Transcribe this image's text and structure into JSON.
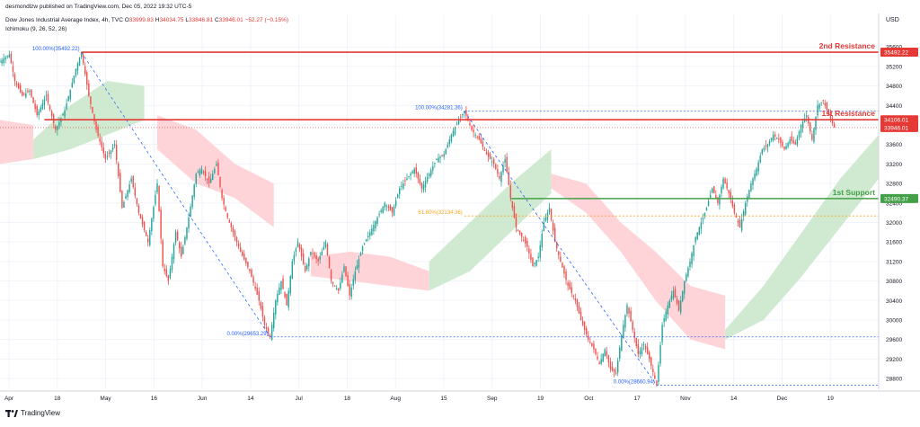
{
  "header": {
    "publisher": "desmondlzw published on TradingView.com, Dec 05, 2022 19:32 UTC-5",
    "symbol": "Dow Jones Industrial Average Index, 4h, TVC",
    "o_label": "O",
    "o_value": "33999.83",
    "h_label": "H",
    "h_value": "34034.75",
    "l_label": "L",
    "l_value": "33846.81",
    "c_label": "C",
    "c_value": "33946.01",
    "change": "−52.27 (−0.15%)",
    "indicator": "Ichimoku (9, 26, 52, 26)"
  },
  "footer": {
    "brand": "TradingView"
  },
  "colors": {
    "up": "#26a69a",
    "down": "#ef5350",
    "resistance": "#e53935",
    "support": "#43a047",
    "fib": "#2962ff",
    "fib61": "#f9a825",
    "cloud_bull": "#c8e6c9",
    "cloud_bear": "#ffcdd2",
    "grid": "#f0f3fa",
    "axis_text": "#131722"
  },
  "chart_data": {
    "type": "candlestick",
    "currency": "USD",
    "x_ticks": [
      "Apr",
      "18",
      "May",
      "16",
      "Jun",
      "14",
      "Jul",
      "18",
      "Aug",
      "15",
      "Sep",
      "19",
      "Oct",
      "17",
      "Nov",
      "14",
      "Dec",
      "19"
    ],
    "y_ticks": [
      28800,
      29200,
      29600,
      30000,
      30400,
      30800,
      31200,
      31600,
      32000,
      32400,
      32800,
      33200,
      33600,
      34000,
      34400,
      34800,
      35200,
      35600
    ],
    "ylim": [
      28580,
      35880
    ],
    "price_path": [
      [
        0,
        35300
      ],
      [
        5,
        35450
      ],
      [
        8,
        34900
      ],
      [
        12,
        34600
      ],
      [
        16,
        34700
      ],
      [
        20,
        34200
      ],
      [
        25,
        34600
      ],
      [
        30,
        33900
      ],
      [
        35,
        34300
      ],
      [
        41,
        35150
      ],
      [
        44,
        35492
      ],
      [
        48,
        34600
      ],
      [
        52,
        33900
      ],
      [
        57,
        33300
      ],
      [
        62,
        33600
      ],
      [
        66,
        32300
      ],
      [
        71,
        32900
      ],
      [
        75,
        32200
      ],
      [
        80,
        31600
      ],
      [
        85,
        32800
      ],
      [
        88,
        31100
      ],
      [
        91,
        30800
      ],
      [
        95,
        31800
      ],
      [
        98,
        31300
      ],
      [
        102,
        32100
      ],
      [
        106,
        33000
      ],
      [
        109,
        33100
      ],
      [
        113,
        32800
      ],
      [
        117,
        33200
      ],
      [
        120,
        32500
      ],
      [
        123,
        32100
      ],
      [
        126,
        31800
      ],
      [
        130,
        31400
      ],
      [
        135,
        31000
      ],
      [
        140,
        30400
      ],
      [
        143,
        29900
      ],
      [
        146,
        29653
      ],
      [
        149,
        30400
      ],
      [
        152,
        30800
      ],
      [
        155,
        30300
      ],
      [
        158,
        31200
      ],
      [
        161,
        31600
      ],
      [
        165,
        31000
      ],
      [
        168,
        31400
      ],
      [
        172,
        31200
      ],
      [
        176,
        31600
      ],
      [
        179,
        30800
      ],
      [
        183,
        30600
      ],
      [
        186,
        31100
      ],
      [
        189,
        30500
      ],
      [
        192,
        31000
      ],
      [
        196,
        31500
      ],
      [
        200,
        31800
      ],
      [
        204,
        32100
      ],
      [
        208,
        32400
      ],
      [
        212,
        32200
      ],
      [
        216,
        32700
      ],
      [
        220,
        32900
      ],
      [
        224,
        33100
      ],
      [
        228,
        32700
      ],
      [
        232,
        33000
      ],
      [
        236,
        33300
      ],
      [
        240,
        33400
      ],
      [
        244,
        33800
      ],
      [
        248,
        34100
      ],
      [
        251,
        34281
      ],
      [
        255,
        33900
      ],
      [
        259,
        33700
      ],
      [
        263,
        33400
      ],
      [
        267,
        33200
      ],
      [
        270,
        32900
      ],
      [
        273,
        33300
      ],
      [
        276,
        32500
      ],
      [
        279,
        31900
      ],
      [
        282,
        31700
      ],
      [
        285,
        31500
      ],
      [
        288,
        31100
      ],
      [
        291,
        31300
      ],
      [
        294,
        32000
      ],
      [
        297,
        32300
      ],
      [
        300,
        31600
      ],
      [
        303,
        31200
      ],
      [
        307,
        30700
      ],
      [
        311,
        30400
      ],
      [
        314,
        30000
      ],
      [
        318,
        29600
      ],
      [
        321,
        29400
      ],
      [
        324,
        29100
      ],
      [
        327,
        29400
      ],
      [
        330,
        29000
      ],
      [
        333,
        28900
      ],
      [
        336,
        29700
      ],
      [
        339,
        30300
      ],
      [
        342,
        29800
      ],
      [
        345,
        29300
      ],
      [
        348,
        29500
      ],
      [
        351,
        29200
      ],
      [
        355,
        28661
      ],
      [
        358,
        29900
      ],
      [
        361,
        30300
      ],
      [
        364,
        30600
      ],
      [
        367,
        30200
      ],
      [
        370,
        30800
      ],
      [
        373,
        31200
      ],
      [
        376,
        31700
      ],
      [
        379,
        32000
      ],
      [
        382,
        32300
      ],
      [
        385,
        32700
      ],
      [
        388,
        32400
      ],
      [
        391,
        32900
      ],
      [
        394,
        32600
      ],
      [
        397,
        32200
      ],
      [
        400,
        31900
      ],
      [
        403,
        32400
      ],
      [
        406,
        32800
      ],
      [
        409,
        33100
      ],
      [
        412,
        33500
      ],
      [
        415,
        33600
      ],
      [
        418,
        33800
      ],
      [
        421,
        33700
      ],
      [
        424,
        33500
      ],
      [
        427,
        33700
      ],
      [
        430,
        33600
      ],
      [
        433,
        34000
      ],
      [
        436,
        34200
      ],
      [
        439,
        33700
      ],
      [
        442,
        34400
      ],
      [
        445,
        34500
      ],
      [
        448,
        34200
      ],
      [
        451,
        33946
      ]
    ],
    "ichimoku_cloud": [
      {
        "color": "bear",
        "x_from": 0,
        "x_to": 18,
        "top": [
          34100,
          34000
        ],
        "bottom": [
          33200,
          33300
        ]
      },
      {
        "color": "bull",
        "x_from": 18,
        "x_to": 78,
        "top": [
          33700,
          34400,
          34900,
          34800
        ],
        "bottom": [
          33300,
          33500,
          33800,
          34100
        ]
      },
      {
        "color": "bear",
        "x_from": 85,
        "x_to": 148,
        "top": [
          34200,
          33900,
          33200,
          32800
        ],
        "bottom": [
          33500,
          32800,
          32500,
          31900
        ]
      },
      {
        "color": "bear",
        "x_from": 168,
        "x_to": 232,
        "top": [
          31300,
          31400,
          31300,
          31000
        ],
        "bottom": [
          30900,
          30800,
          30700,
          30600
        ]
      },
      {
        "color": "bull",
        "x_from": 232,
        "x_to": 298,
        "top": [
          31200,
          32000,
          32800,
          33500
        ],
        "bottom": [
          30600,
          31000,
          31800,
          32600
        ]
      },
      {
        "color": "bear",
        "x_from": 298,
        "x_to": 392,
        "top": [
          33000,
          32800,
          32000,
          31400,
          30700,
          30500
        ],
        "bottom": [
          32700,
          32200,
          31400,
          30400,
          29600,
          29400
        ]
      },
      {
        "color": "bull",
        "x_from": 392,
        "x_to": 475,
        "top": [
          29800,
          30700,
          31800,
          32900,
          33800
        ],
        "bottom": [
          29600,
          30000,
          30900,
          31900,
          32900
        ]
      }
    ],
    "levels": [
      {
        "name": "2nd Resistance",
        "price": 35492.22,
        "label": "35492.22",
        "kind": "resistance"
      },
      {
        "name": "1st Resistance",
        "price": 34106.01,
        "label": "34106.01",
        "kind": "resistance"
      },
      {
        "name": "1st Support",
        "price": 32490.37,
        "label": "32490.37",
        "kind": "support"
      }
    ],
    "current_price": {
      "price": 33946.01,
      "label": "33946.01"
    },
    "fib_annotations": [
      {
        "text": "100.00%(35492.22)",
        "price": 35492.22
      },
      {
        "text": "0.00%(29653.29)",
        "price": 29653.29
      },
      {
        "text": "100.00%(34281.36)",
        "price": 34281.36
      },
      {
        "text": "61.80%(32134.36)",
        "price": 32134.36
      },
      {
        "text": "0.00%(28660.94)",
        "price": 28660.94
      }
    ]
  }
}
